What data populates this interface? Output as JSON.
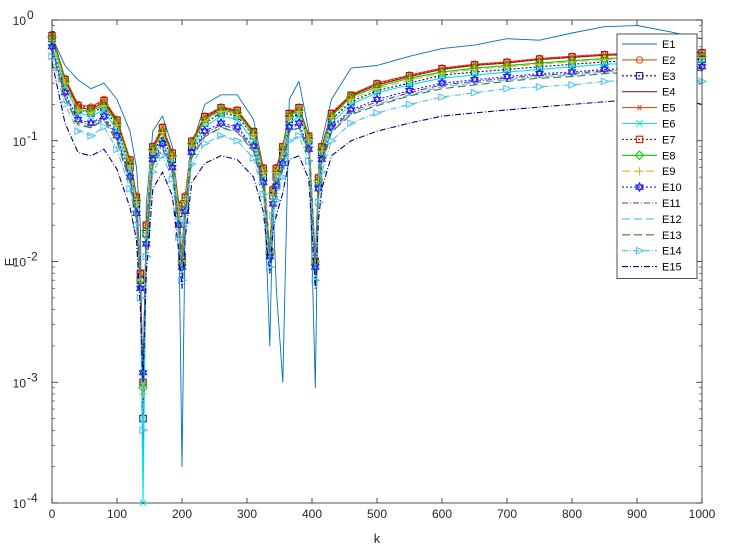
{
  "chart_data": {
    "type": "line",
    "xlabel": "k",
    "ylabel": "E",
    "xlim": [
      0,
      1000
    ],
    "ylim": [
      0.0001,
      1
    ],
    "yscale": "log",
    "grid": false,
    "legend_position": "top-right",
    "x_ticks": [
      "0",
      "100",
      "200",
      "300",
      "400",
      "500",
      "600",
      "700",
      "800",
      "900",
      "1000"
    ],
    "y_ticks": [
      {
        "base": "10",
        "exp": "0"
      },
      {
        "base": "10",
        "exp": "-1"
      },
      {
        "base": "10",
        "exp": "-2"
      },
      {
        "base": "10",
        "exp": "-3"
      },
      {
        "base": "10",
        "exp": "-4"
      }
    ],
    "x": [
      0,
      20,
      40,
      60,
      80,
      100,
      120,
      130,
      136,
      140,
      145,
      155,
      170,
      185,
      195,
      200,
      205,
      215,
      235,
      260,
      285,
      310,
      325,
      335,
      340,
      345,
      355,
      365,
      380,
      395,
      405,
      410,
      415,
      430,
      460,
      500,
      550,
      600,
      650,
      700,
      750,
      800,
      850,
      900,
      950,
      1000
    ],
    "series": [
      {
        "name": "E1",
        "color": "#0072BD",
        "marker": "none",
        "dash": "",
        "values": [
          0.72,
          0.42,
          0.32,
          0.27,
          0.3,
          0.22,
          0.12,
          0.06,
          0.02,
          0.0002,
          0.03,
          0.12,
          0.16,
          0.09,
          0.02,
          0.0002,
          0.025,
          0.09,
          0.2,
          0.24,
          0.24,
          0.15,
          0.06,
          0.002,
          0.03,
          0.006,
          0.001,
          0.22,
          0.31,
          0.12,
          0.0009,
          0.06,
          0.1,
          0.22,
          0.4,
          0.42,
          0.5,
          0.58,
          0.62,
          0.7,
          0.68,
          0.78,
          0.88,
          0.9,
          0.8,
          0.7
        ]
      },
      {
        "name": "E2",
        "color": "#D95319",
        "marker": "circle",
        "dash": "",
        "values": [
          0.76,
          0.33,
          0.2,
          0.19,
          0.22,
          0.15,
          0.07,
          0.035,
          0.008,
          0.001,
          0.02,
          0.09,
          0.13,
          0.08,
          0.03,
          0.01,
          0.035,
          0.1,
          0.16,
          0.19,
          0.18,
          0.12,
          0.06,
          0.012,
          0.04,
          0.06,
          0.09,
          0.17,
          0.19,
          0.11,
          0.01,
          0.05,
          0.09,
          0.17,
          0.24,
          0.3,
          0.35,
          0.4,
          0.43,
          0.45,
          0.48,
          0.5,
          0.52,
          0.53,
          0.57,
          0.54
        ]
      },
      {
        "name": "E3",
        "color": "#00008B",
        "marker": "square",
        "dash": "2,2",
        "values": [
          0.7,
          0.3,
          0.18,
          0.17,
          0.19,
          0.13,
          0.06,
          0.03,
          0.007,
          0.0005,
          0.017,
          0.08,
          0.11,
          0.07,
          0.025,
          0.011,
          0.03,
          0.09,
          0.14,
          0.17,
          0.16,
          0.11,
          0.05,
          0.012,
          0.035,
          0.05,
          0.08,
          0.15,
          0.17,
          0.1,
          0.01,
          0.045,
          0.08,
          0.15,
          0.21,
          0.26,
          0.3,
          0.35,
          0.37,
          0.39,
          0.41,
          0.43,
          0.45,
          0.46,
          0.49,
          0.47
        ]
      },
      {
        "name": "E4",
        "color": "#A2142F",
        "marker": "none",
        "dash": "",
        "values": [
          0.74,
          0.32,
          0.19,
          0.18,
          0.21,
          0.145,
          0.068,
          0.034,
          0.008,
          0.0009,
          0.019,
          0.088,
          0.125,
          0.078,
          0.029,
          0.011,
          0.034,
          0.098,
          0.155,
          0.185,
          0.175,
          0.118,
          0.058,
          0.012,
          0.039,
          0.058,
          0.088,
          0.165,
          0.185,
          0.108,
          0.01,
          0.049,
          0.088,
          0.165,
          0.235,
          0.29,
          0.34,
          0.39,
          0.42,
          0.44,
          0.47,
          0.49,
          0.51,
          0.52,
          0.56,
          0.53
        ]
      },
      {
        "name": "E5",
        "color": "#D95319",
        "marker": "asterisk",
        "dash": "",
        "values": [
          0.75,
          0.33,
          0.2,
          0.19,
          0.22,
          0.15,
          0.07,
          0.035,
          0.008,
          0.001,
          0.02,
          0.09,
          0.13,
          0.08,
          0.03,
          0.01,
          0.035,
          0.1,
          0.16,
          0.19,
          0.18,
          0.12,
          0.06,
          0.012,
          0.04,
          0.06,
          0.09,
          0.17,
          0.19,
          0.11,
          0.01,
          0.05,
          0.09,
          0.17,
          0.24,
          0.3,
          0.35,
          0.4,
          0.43,
          0.45,
          0.48,
          0.5,
          0.52,
          0.53,
          0.57,
          0.54
        ]
      },
      {
        "name": "E6",
        "color": "#00E5E5",
        "marker": "x",
        "dash": "",
        "values": [
          0.62,
          0.28,
          0.17,
          0.16,
          0.18,
          0.12,
          0.055,
          0.028,
          0.006,
          0.0001,
          0.015,
          0.075,
          0.1,
          0.065,
          0.022,
          0.009,
          0.028,
          0.085,
          0.13,
          0.16,
          0.15,
          0.1,
          0.048,
          0.011,
          0.032,
          0.045,
          0.07,
          0.14,
          0.16,
          0.095,
          0.009,
          0.042,
          0.075,
          0.14,
          0.2,
          0.25,
          0.29,
          0.33,
          0.35,
          0.37,
          0.39,
          0.41,
          0.43,
          0.44,
          0.46,
          0.44
        ]
      },
      {
        "name": "E7",
        "color": "#CC0000",
        "marker": "square",
        "dash": "2,2",
        "values": [
          0.74,
          0.32,
          0.195,
          0.185,
          0.215,
          0.148,
          0.069,
          0.034,
          0.008,
          0.001,
          0.02,
          0.089,
          0.128,
          0.079,
          0.029,
          0.01,
          0.034,
          0.099,
          0.158,
          0.188,
          0.178,
          0.119,
          0.059,
          0.012,
          0.039,
          0.059,
          0.089,
          0.168,
          0.188,
          0.109,
          0.01,
          0.049,
          0.089,
          0.168,
          0.238,
          0.295,
          0.345,
          0.395,
          0.425,
          0.445,
          0.475,
          0.495,
          0.515,
          0.525,
          0.565,
          0.535
        ]
      },
      {
        "name": "E8",
        "color": "#00CC00",
        "marker": "diamond",
        "dash": "",
        "values": [
          0.72,
          0.31,
          0.18,
          0.175,
          0.2,
          0.14,
          0.065,
          0.032,
          0.007,
          0.0009,
          0.018,
          0.085,
          0.12,
          0.075,
          0.027,
          0.01,
          0.032,
          0.095,
          0.15,
          0.18,
          0.17,
          0.115,
          0.056,
          0.012,
          0.037,
          0.056,
          0.085,
          0.16,
          0.18,
          0.105,
          0.01,
          0.047,
          0.085,
          0.16,
          0.23,
          0.28,
          0.33,
          0.37,
          0.4,
          0.42,
          0.44,
          0.46,
          0.48,
          0.49,
          0.52,
          0.5
        ]
      },
      {
        "name": "E9",
        "color": "#EDB120",
        "marker": "plus",
        "dash": "8,4",
        "values": [
          0.68,
          0.3,
          0.18,
          0.17,
          0.195,
          0.135,
          0.062,
          0.031,
          0.007,
          0.0008,
          0.017,
          0.082,
          0.117,
          0.073,
          0.026,
          0.01,
          0.031,
          0.092,
          0.145,
          0.175,
          0.165,
          0.112,
          0.054,
          0.012,
          0.036,
          0.054,
          0.082,
          0.155,
          0.175,
          0.102,
          0.01,
          0.046,
          0.082,
          0.155,
          0.22,
          0.27,
          0.32,
          0.36,
          0.39,
          0.41,
          0.43,
          0.45,
          0.47,
          0.48,
          0.51,
          0.49
        ]
      },
      {
        "name": "E10",
        "color": "#1A1AFF",
        "marker": "hexagram",
        "dash": "2,2",
        "values": [
          0.6,
          0.25,
          0.15,
          0.14,
          0.16,
          0.11,
          0.05,
          0.025,
          0.006,
          0.0012,
          0.014,
          0.07,
          0.095,
          0.06,
          0.02,
          0.009,
          0.026,
          0.08,
          0.12,
          0.14,
          0.13,
          0.09,
          0.045,
          0.011,
          0.03,
          0.042,
          0.065,
          0.13,
          0.14,
          0.085,
          0.009,
          0.04,
          0.07,
          0.13,
          0.18,
          0.22,
          0.26,
          0.3,
          0.32,
          0.34,
          0.36,
          0.37,
          0.39,
          0.4,
          0.42,
          0.41
        ]
      },
      {
        "name": "E11",
        "color": "#7E2F8E",
        "marker": "none",
        "dash": "6,2,1,2",
        "values": [
          0.58,
          0.24,
          0.145,
          0.135,
          0.155,
          0.105,
          0.048,
          0.024,
          0.006,
          0.0011,
          0.013,
          0.067,
          0.092,
          0.058,
          0.019,
          0.009,
          0.025,
          0.077,
          0.115,
          0.135,
          0.125,
          0.087,
          0.043,
          0.011,
          0.029,
          0.04,
          0.062,
          0.125,
          0.135,
          0.082,
          0.009,
          0.038,
          0.067,
          0.125,
          0.175,
          0.21,
          0.25,
          0.29,
          0.31,
          0.33,
          0.35,
          0.36,
          0.38,
          0.39,
          0.41,
          0.4
        ]
      },
      {
        "name": "E12",
        "color": "#4DBEEE",
        "marker": "none",
        "dash": "8,4",
        "values": [
          0.56,
          0.23,
          0.14,
          0.13,
          0.15,
          0.1,
          0.046,
          0.023,
          0.005,
          0.001,
          0.012,
          0.064,
          0.088,
          0.055,
          0.018,
          0.008,
          0.024,
          0.074,
          0.11,
          0.13,
          0.12,
          0.084,
          0.041,
          0.01,
          0.028,
          0.038,
          0.06,
          0.12,
          0.13,
          0.079,
          0.008,
          0.036,
          0.064,
          0.12,
          0.17,
          0.2,
          0.24,
          0.28,
          0.3,
          0.32,
          0.34,
          0.35,
          0.37,
          0.38,
          0.4,
          0.39
        ]
      },
      {
        "name": "E13",
        "color": "#3A7D22",
        "marker": "none",
        "dash": "8,4",
        "values": [
          0.55,
          0.225,
          0.135,
          0.128,
          0.148,
          0.098,
          0.045,
          0.022,
          0.005,
          0.001,
          0.012,
          0.062,
          0.086,
          0.054,
          0.018,
          0.008,
          0.023,
          0.072,
          0.108,
          0.128,
          0.118,
          0.082,
          0.04,
          0.01,
          0.027,
          0.037,
          0.058,
          0.118,
          0.128,
          0.077,
          0.008,
          0.035,
          0.062,
          0.118,
          0.165,
          0.195,
          0.235,
          0.27,
          0.29,
          0.31,
          0.33,
          0.34,
          0.36,
          0.37,
          0.39,
          0.38
        ]
      },
      {
        "name": "E14",
        "color": "#4DBEEE",
        "marker": "triangle-right",
        "dash": "6,2,1,2",
        "values": [
          0.5,
          0.2,
          0.12,
          0.11,
          0.13,
          0.085,
          0.04,
          0.02,
          0.005,
          0.0004,
          0.011,
          0.055,
          0.075,
          0.048,
          0.016,
          0.007,
          0.021,
          0.064,
          0.095,
          0.11,
          0.1,
          0.072,
          0.036,
          0.009,
          0.024,
          0.032,
          0.05,
          0.1,
          0.11,
          0.068,
          0.007,
          0.031,
          0.055,
          0.1,
          0.14,
          0.17,
          0.2,
          0.23,
          0.25,
          0.27,
          0.28,
          0.29,
          0.31,
          0.32,
          0.33,
          0.31
        ]
      },
      {
        "name": "E15",
        "color": "#00008B",
        "marker": "none",
        "dash": "6,2,1,2",
        "values": [
          0.45,
          0.14,
          0.08,
          0.075,
          0.085,
          0.058,
          0.028,
          0.015,
          0.004,
          0.001,
          0.008,
          0.04,
          0.055,
          0.035,
          0.012,
          0.006,
          0.016,
          0.045,
          0.065,
          0.075,
          0.07,
          0.05,
          0.026,
          0.008,
          0.018,
          0.024,
          0.037,
          0.07,
          0.075,
          0.048,
          0.006,
          0.022,
          0.04,
          0.075,
          0.1,
          0.12,
          0.14,
          0.16,
          0.17,
          0.18,
          0.19,
          0.2,
          0.21,
          0.22,
          0.23,
          0.2
        ]
      }
    ]
  }
}
